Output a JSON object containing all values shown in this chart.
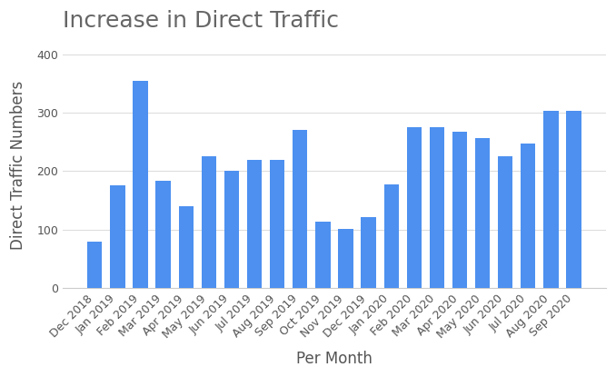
{
  "title": "Increase in Direct Traffic",
  "xlabel": "Per Month",
  "ylabel": "Direct Traffic Numbers",
  "categories": [
    "Dec 2018",
    "Jan 2019",
    "Feb 2019",
    "Mar 2019",
    "Apr 2019",
    "May 2019",
    "Jun 2019",
    "Jul 2019",
    "Aug 2019",
    "Sep 2019",
    "Oct 2019",
    "Nov 2019",
    "Dec 2019",
    "Jan 2020",
    "Feb 2020",
    "Mar 2020",
    "Apr 2020",
    "May 2020",
    "Jun 2020",
    "Jul 2020",
    "Aug 2020",
    "Sep 2020"
  ],
  "values": [
    80,
    175,
    355,
    183,
    140,
    225,
    200,
    220,
    220,
    270,
    113,
    101,
    122,
    178,
    275,
    275,
    268,
    257,
    225,
    248,
    303,
    303
  ],
  "bar_color": "#4d90f0",
  "title_color": "#666666",
  "title_fontsize": 18,
  "label_fontsize": 12,
  "tick_fontsize": 9,
  "ylim": [
    0,
    420
  ],
  "yticks": [
    0,
    100,
    200,
    300,
    400
  ],
  "background_color": "#ffffff",
  "grid_color": "#dddddd"
}
